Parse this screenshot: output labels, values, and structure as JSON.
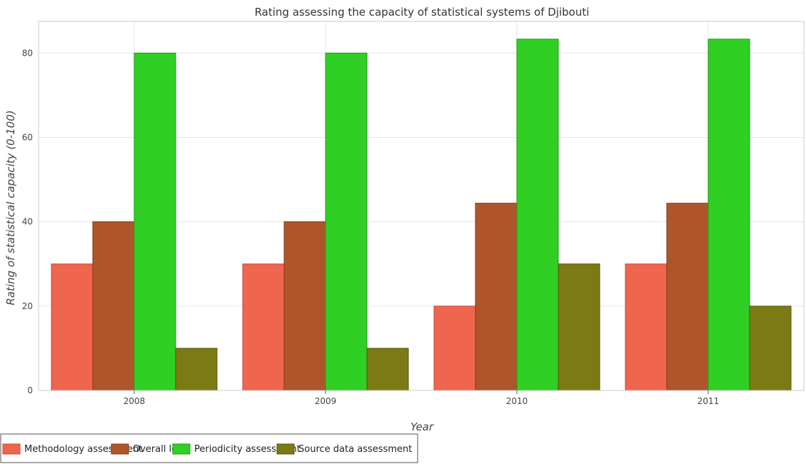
{
  "chart_data": {
    "type": "bar",
    "title": "Rating assessing the capacity of statistical systems of Djibouti",
    "xlabel": "Year",
    "ylabel": "Rating of statistical capacity (0-100)",
    "categories": [
      "2008",
      "2009",
      "2010",
      "2011"
    ],
    "ylim": [
      0,
      87.5
    ],
    "yticks": [
      0,
      20,
      40,
      60,
      80
    ],
    "grid": true,
    "legend_position": "bottom-left",
    "series": [
      {
        "name": "Methodology assessment",
        "color": "#f0654e",
        "edge": "#c04b38",
        "values": [
          30,
          30,
          20,
          30
        ]
      },
      {
        "name": "Overall level",
        "color": "#b0552b",
        "edge": "#7e3c1d",
        "values": [
          40,
          40,
          44.4,
          44.4
        ]
      },
      {
        "name": "Periodicity assessment",
        "color": "#2fd023",
        "edge": "#1f9a17",
        "values": [
          80,
          80,
          83.3,
          83.3
        ]
      },
      {
        "name": "Source data assessment",
        "color": "#7b7a15",
        "edge": "#55540e",
        "values": [
          10,
          10,
          30,
          20
        ]
      }
    ]
  }
}
